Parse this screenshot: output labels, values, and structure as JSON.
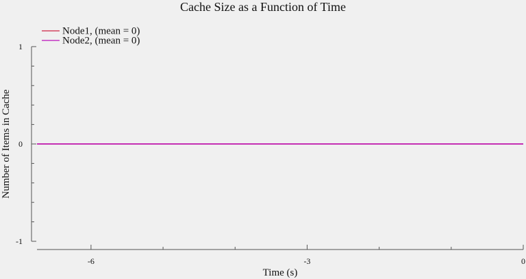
{
  "chart_data": {
    "type": "line",
    "title": "Cache Size as a Function of Time",
    "xlabel": "Time (s)",
    "ylabel": "Number of Items in Cache",
    "xlim": [
      -6.75,
      0
    ],
    "ylim": [
      -1,
      1
    ],
    "x_major_ticks": [
      -6,
      -3,
      0
    ],
    "x_minor_ticks": [
      -5,
      -4,
      -2,
      -1
    ],
    "y_major_ticks": [
      -1,
      0,
      1
    ],
    "y_minor_ticks": [
      -0.8,
      -0.6,
      -0.4,
      -0.2,
      0.2,
      0.4,
      0.6,
      0.8
    ],
    "grid": false,
    "legend_position": "top-left",
    "series": [
      {
        "name": "Node1, (mean = 0)",
        "color": "#cc2244",
        "x": [
          -6.75,
          0
        ],
        "values": [
          0,
          0
        ]
      },
      {
        "name": "Node2, (mean = 0)",
        "color": "#bb11bb",
        "x": [
          -6.75,
          0
        ],
        "values": [
          0,
          0
        ]
      }
    ]
  }
}
